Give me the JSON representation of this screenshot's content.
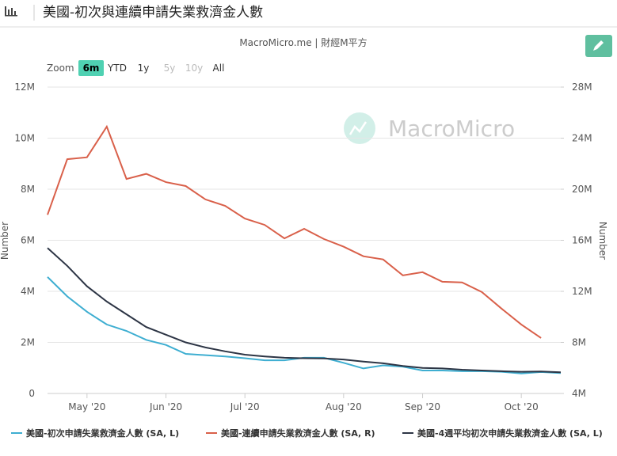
{
  "header": {
    "title": "美國-初次與連續申請失業救濟金人數"
  },
  "chart_data": {
    "type": "line",
    "title": "MacroMicro.me | 財經M平方",
    "watermark": "MacroMicro",
    "zoom": {
      "label": "Zoom",
      "options": [
        "6m",
        "YTD",
        "1y",
        "5y",
        "10y",
        "All"
      ],
      "active": "6m"
    },
    "ylabel": "Number",
    "y2label": "Number",
    "categories": [
      null,
      null,
      "May '20",
      null,
      null,
      null,
      "Jun '20",
      null,
      null,
      null,
      "Jul '20",
      null,
      null,
      null,
      null,
      "Aug '20",
      null,
      null,
      null,
      "Sep '20",
      null,
      null,
      null,
      null,
      "Oct '20",
      null,
      null
    ],
    "ylim": [
      0,
      12000000
    ],
    "yticks": [
      0,
      {
        "value": 2000000,
        "label": "2M"
      },
      {
        "value": 4000000,
        "label": "4M"
      },
      {
        "value": 6000000,
        "label": "6M"
      },
      {
        "value": 8000000,
        "label": "8M"
      },
      {
        "value": 10000000,
        "label": "10M"
      },
      {
        "value": 12000000,
        "label": "12M"
      }
    ],
    "y2lim": [
      4000000,
      28000000
    ],
    "y2ticks": [
      {
        "value": 4000000,
        "label": "4M"
      },
      {
        "value": 8000000,
        "label": "8M"
      },
      {
        "value": 12000000,
        "label": "12M"
      },
      {
        "value": 16000000,
        "label": "16M"
      },
      {
        "value": 20000000,
        "label": "20M"
      },
      {
        "value": 24000000,
        "label": "24M"
      },
      {
        "value": 28000000,
        "label": "28M"
      }
    ],
    "grid": true,
    "series": [
      {
        "name": "美國-初次申請失業救濟金人數 (SA, L)",
        "color": "#3eaed1",
        "axis": "y",
        "values": [
          4560000,
          3800000,
          3200000,
          2700000,
          2450000,
          2100000,
          1900000,
          1550000,
          1500000,
          1450000,
          1380000,
          1300000,
          1300000,
          1400000,
          1400000,
          1200000,
          980000,
          1100000,
          1050000,
          900000,
          900000,
          870000,
          870000,
          850000,
          780000,
          840000,
          800000
        ]
      },
      {
        "name": "美國-連續申請失業救濟金人數 (SA, R)",
        "color": "#d9604a",
        "axis": "y2",
        "values": [
          18000000,
          22350000,
          22500000,
          24900000,
          20800000,
          21200000,
          20550000,
          20250000,
          19200000,
          18700000,
          17700000,
          17200000,
          16150000,
          16900000,
          16100000,
          15500000,
          14750000,
          14500000,
          13250000,
          13500000,
          12750000,
          12700000,
          11950000,
          10650000,
          9400000,
          8350000,
          null
        ]
      },
      {
        "name": "美國-4週平均初次申請失業救濟金人數 (SA, L)",
        "color": "#2d3545",
        "axis": "y",
        "values": [
          5700000,
          5000000,
          4200000,
          3600000,
          3100000,
          2600000,
          2300000,
          2000000,
          1800000,
          1650000,
          1520000,
          1450000,
          1400000,
          1380000,
          1370000,
          1330000,
          1250000,
          1180000,
          1080000,
          1000000,
          980000,
          930000,
          900000,
          870000,
          850000,
          860000,
          830000
        ]
      }
    ]
  }
}
